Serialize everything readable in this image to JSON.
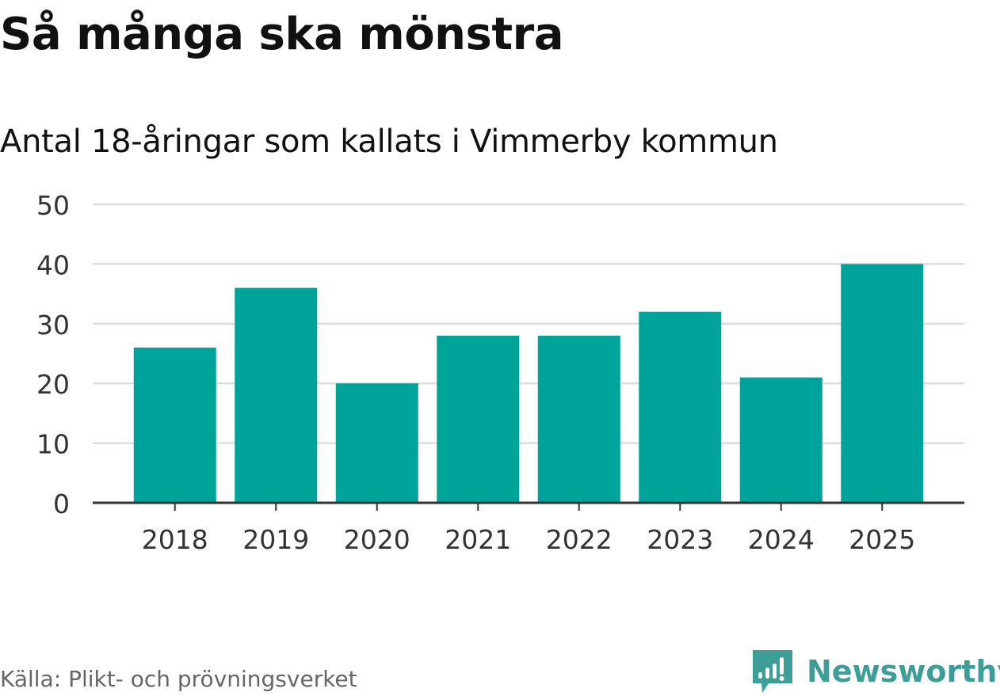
{
  "title": "Så många ska mönstra",
  "subtitle": "Antal 18-åringar som kallats i Vimmerby kommun",
  "source": "Källa: Plikt- och prövningsverket",
  "logo": {
    "text": "Newsworthy",
    "icon": "newsworthy-logo-icon",
    "color": "#3d9e98"
  },
  "colors": {
    "bar": "#00a39a",
    "grid": "#dddddd",
    "axis": "#333333",
    "tick_text": "#333333"
  },
  "chart_data": {
    "type": "bar",
    "title": "Så många ska mönstra",
    "subtitle": "Antal 18-åringar som kallats i Vimmerby kommun",
    "xlabel": "",
    "ylabel": "",
    "categories": [
      "2018",
      "2019",
      "2020",
      "2021",
      "2022",
      "2023",
      "2024",
      "2025"
    ],
    "values": [
      26,
      36,
      20,
      28,
      28,
      32,
      21,
      40
    ],
    "ylim": [
      0,
      50
    ],
    "yticks": [
      0,
      10,
      20,
      30,
      40,
      50
    ],
    "grid": true,
    "legend": "none"
  }
}
